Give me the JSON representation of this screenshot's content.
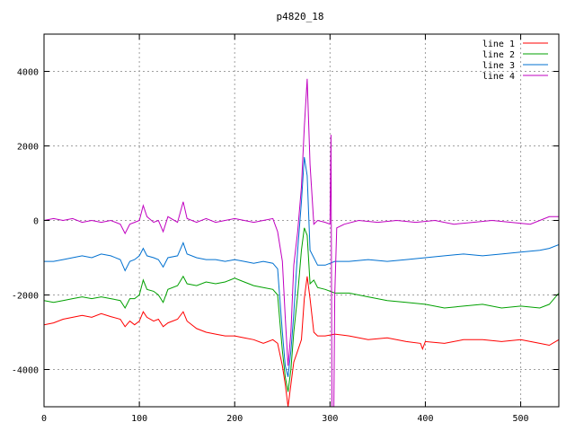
{
  "chart_data": {
    "type": "line",
    "title": "p4820_18",
    "xlabel": "",
    "ylabel": "",
    "xlim": [
      0,
      540
    ],
    "ylim": [
      -5000,
      5000
    ],
    "xticks": [
      0,
      100,
      200,
      300,
      400,
      500
    ],
    "yticks": [
      -4000,
      -2000,
      0,
      2000,
      4000
    ],
    "grid": true,
    "legend_position": "top-right",
    "series": [
      {
        "name": "line 1",
        "color": "#ff0000",
        "points": [
          [
            0,
            -2800
          ],
          [
            10,
            -2750
          ],
          [
            20,
            -2650
          ],
          [
            30,
            -2600
          ],
          [
            40,
            -2550
          ],
          [
            50,
            -2600
          ],
          [
            60,
            -2500
          ],
          [
            70,
            -2580
          ],
          [
            80,
            -2650
          ],
          [
            85,
            -2850
          ],
          [
            90,
            -2700
          ],
          [
            95,
            -2800
          ],
          [
            100,
            -2700
          ],
          [
            104,
            -2450
          ],
          [
            108,
            -2600
          ],
          [
            115,
            -2700
          ],
          [
            120,
            -2650
          ],
          [
            125,
            -2850
          ],
          [
            130,
            -2750
          ],
          [
            140,
            -2650
          ],
          [
            146,
            -2450
          ],
          [
            150,
            -2700
          ],
          [
            160,
            -2900
          ],
          [
            170,
            -3000
          ],
          [
            180,
            -3050
          ],
          [
            190,
            -3100
          ],
          [
            200,
            -3100
          ],
          [
            210,
            -3150
          ],
          [
            220,
            -3200
          ],
          [
            230,
            -3300
          ],
          [
            240,
            -3200
          ],
          [
            245,
            -3300
          ],
          [
            250,
            -3900
          ],
          [
            253,
            -4400
          ],
          [
            256,
            -5000
          ],
          [
            259,
            -4400
          ],
          [
            262,
            -3800
          ],
          [
            266,
            -3500
          ],
          [
            270,
            -3200
          ],
          [
            273,
            -2100
          ],
          [
            276,
            -1500
          ],
          [
            279,
            -2100
          ],
          [
            283,
            -3000
          ],
          [
            287,
            -3100
          ],
          [
            295,
            -3100
          ],
          [
            305,
            -3050
          ],
          [
            320,
            -3100
          ],
          [
            340,
            -3200
          ],
          [
            360,
            -3150
          ],
          [
            380,
            -3250
          ],
          [
            395,
            -3300
          ],
          [
            397,
            -3450
          ],
          [
            400,
            -3250
          ],
          [
            420,
            -3300
          ],
          [
            440,
            -3200
          ],
          [
            460,
            -3200
          ],
          [
            480,
            -3250
          ],
          [
            500,
            -3200
          ],
          [
            520,
            -3300
          ],
          [
            530,
            -3350
          ],
          [
            540,
            -3200
          ]
        ]
      },
      {
        "name": "line 2",
        "color": "#00a000",
        "points": [
          [
            0,
            -2150
          ],
          [
            10,
            -2200
          ],
          [
            20,
            -2150
          ],
          [
            30,
            -2100
          ],
          [
            40,
            -2050
          ],
          [
            50,
            -2100
          ],
          [
            60,
            -2050
          ],
          [
            70,
            -2100
          ],
          [
            80,
            -2150
          ],
          [
            85,
            -2350
          ],
          [
            90,
            -2100
          ],
          [
            95,
            -2100
          ],
          [
            100,
            -2000
          ],
          [
            104,
            -1600
          ],
          [
            108,
            -1850
          ],
          [
            115,
            -1900
          ],
          [
            120,
            -2000
          ],
          [
            125,
            -2200
          ],
          [
            130,
            -1850
          ],
          [
            140,
            -1750
          ],
          [
            146,
            -1500
          ],
          [
            150,
            -1700
          ],
          [
            160,
            -1750
          ],
          [
            170,
            -1650
          ],
          [
            180,
            -1700
          ],
          [
            190,
            -1650
          ],
          [
            200,
            -1550
          ],
          [
            210,
            -1650
          ],
          [
            220,
            -1750
          ],
          [
            230,
            -1800
          ],
          [
            240,
            -1850
          ],
          [
            245,
            -2000
          ],
          [
            250,
            -3500
          ],
          [
            253,
            -4200
          ],
          [
            256,
            -4600
          ],
          [
            259,
            -4000
          ],
          [
            262,
            -3000
          ],
          [
            266,
            -2000
          ],
          [
            270,
            -800
          ],
          [
            273,
            -200
          ],
          [
            276,
            -400
          ],
          [
            279,
            -1700
          ],
          [
            283,
            -1600
          ],
          [
            287,
            -1800
          ],
          [
            295,
            -1850
          ],
          [
            305,
            -1950
          ],
          [
            320,
            -1950
          ],
          [
            340,
            -2050
          ],
          [
            360,
            -2150
          ],
          [
            380,
            -2200
          ],
          [
            400,
            -2250
          ],
          [
            420,
            -2350
          ],
          [
            440,
            -2300
          ],
          [
            460,
            -2250
          ],
          [
            480,
            -2350
          ],
          [
            500,
            -2300
          ],
          [
            520,
            -2350
          ],
          [
            530,
            -2250
          ],
          [
            540,
            -1950
          ]
        ]
      },
      {
        "name": "line 3",
        "color": "#0070d0",
        "points": [
          [
            0,
            -1100
          ],
          [
            10,
            -1100
          ],
          [
            20,
            -1050
          ],
          [
            30,
            -1000
          ],
          [
            40,
            -950
          ],
          [
            50,
            -1000
          ],
          [
            60,
            -900
          ],
          [
            70,
            -950
          ],
          [
            80,
            -1050
          ],
          [
            85,
            -1350
          ],
          [
            90,
            -1100
          ],
          [
            95,
            -1050
          ],
          [
            100,
            -950
          ],
          [
            104,
            -750
          ],
          [
            108,
            -950
          ],
          [
            115,
            -1000
          ],
          [
            120,
            -1050
          ],
          [
            125,
            -1250
          ],
          [
            130,
            -1000
          ],
          [
            140,
            -950
          ],
          [
            146,
            -600
          ],
          [
            150,
            -900
          ],
          [
            160,
            -1000
          ],
          [
            170,
            -1050
          ],
          [
            180,
            -1050
          ],
          [
            190,
            -1100
          ],
          [
            200,
            -1050
          ],
          [
            210,
            -1100
          ],
          [
            220,
            -1150
          ],
          [
            230,
            -1100
          ],
          [
            240,
            -1150
          ],
          [
            245,
            -1300
          ],
          [
            250,
            -3000
          ],
          [
            253,
            -3900
          ],
          [
            256,
            -4200
          ],
          [
            259,
            -3500
          ],
          [
            262,
            -2500
          ],
          [
            266,
            -800
          ],
          [
            270,
            500
          ],
          [
            273,
            1700
          ],
          [
            276,
            1200
          ],
          [
            279,
            -800
          ],
          [
            283,
            -1000
          ],
          [
            287,
            -1200
          ],
          [
            295,
            -1200
          ],
          [
            305,
            -1100
          ],
          [
            320,
            -1100
          ],
          [
            340,
            -1050
          ],
          [
            360,
            -1100
          ],
          [
            380,
            -1050
          ],
          [
            400,
            -1000
          ],
          [
            420,
            -950
          ],
          [
            440,
            -900
          ],
          [
            460,
            -950
          ],
          [
            480,
            -900
          ],
          [
            500,
            -850
          ],
          [
            520,
            -800
          ],
          [
            530,
            -750
          ],
          [
            540,
            -650
          ]
        ]
      },
      {
        "name": "line 4",
        "color": "#c000c0",
        "points": [
          [
            0,
            0
          ],
          [
            10,
            50
          ],
          [
            20,
            0
          ],
          [
            30,
            50
          ],
          [
            40,
            -50
          ],
          [
            50,
            0
          ],
          [
            60,
            -50
          ],
          [
            70,
            0
          ],
          [
            80,
            -100
          ],
          [
            85,
            -350
          ],
          [
            90,
            -100
          ],
          [
            95,
            -50
          ],
          [
            100,
            0
          ],
          [
            104,
            400
          ],
          [
            108,
            100
          ],
          [
            115,
            -50
          ],
          [
            120,
            0
          ],
          [
            125,
            -300
          ],
          [
            130,
            100
          ],
          [
            140,
            -50
          ],
          [
            146,
            500
          ],
          [
            150,
            50
          ],
          [
            160,
            -50
          ],
          [
            170,
            50
          ],
          [
            180,
            -50
          ],
          [
            190,
            0
          ],
          [
            200,
            50
          ],
          [
            210,
            0
          ],
          [
            220,
            -50
          ],
          [
            230,
            0
          ],
          [
            240,
            50
          ],
          [
            245,
            -300
          ],
          [
            250,
            -1100
          ],
          [
            253,
            -2600
          ],
          [
            256,
            -3900
          ],
          [
            259,
            -3000
          ],
          [
            262,
            -1200
          ],
          [
            266,
            -300
          ],
          [
            270,
            900
          ],
          [
            273,
            2500
          ],
          [
            276,
            3800
          ],
          [
            279,
            1500
          ],
          [
            283,
            -100
          ],
          [
            287,
            0
          ],
          [
            295,
            -50
          ],
          [
            300,
            -100
          ],
          [
            301,
            2300
          ],
          [
            302,
            -5000
          ],
          [
            304,
            -5000
          ],
          [
            305,
            -2000
          ],
          [
            307,
            -200
          ],
          [
            315,
            -100
          ],
          [
            330,
            0
          ],
          [
            350,
            -50
          ],
          [
            370,
            0
          ],
          [
            390,
            -50
          ],
          [
            410,
            0
          ],
          [
            430,
            -100
          ],
          [
            450,
            -50
          ],
          [
            470,
            0
          ],
          [
            490,
            -50
          ],
          [
            510,
            -100
          ],
          [
            520,
            0
          ],
          [
            530,
            100
          ],
          [
            540,
            100
          ]
        ]
      }
    ]
  }
}
